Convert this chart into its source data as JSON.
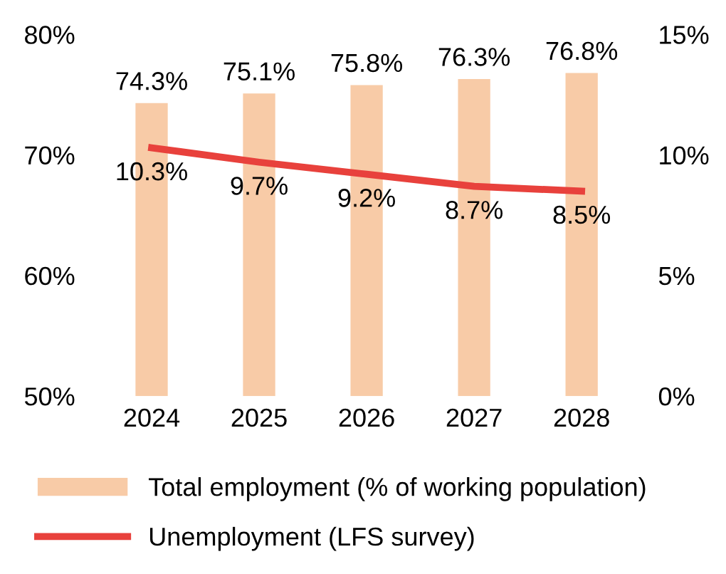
{
  "chart_data": {
    "type": "bar",
    "categories": [
      "2024",
      "2025",
      "2026",
      "2027",
      "2028"
    ],
    "series": [
      {
        "name": "Total employment (% of working population)",
        "color": "#f8cba7",
        "values": [
          74.3,
          75.1,
          75.8,
          76.3,
          76.8
        ],
        "value_labels": [
          "74.3%",
          "75.1%",
          "75.8%",
          "76.3%",
          "76.8%"
        ]
      },
      {
        "name": "Unemployment (LFS survey)",
        "type": "line",
        "axis": "y2",
        "color": "#e8413c",
        "values": [
          10.3,
          9.7,
          9.2,
          8.7,
          8.5
        ],
        "value_labels": [
          "10.3%",
          "9.7%",
          "9.2%",
          "8.7%",
          "8.5%"
        ]
      }
    ],
    "ylim": [
      50,
      80
    ],
    "yticks": [
      {
        "value": 50,
        "label": "50%"
      },
      {
        "value": 60,
        "label": "60%"
      },
      {
        "value": 70,
        "label": "70%"
      },
      {
        "value": 80,
        "label": "80%"
      }
    ],
    "y2lim": [
      0,
      15
    ],
    "y2ticks": [
      {
        "value": 0,
        "label": "0%"
      },
      {
        "value": 5,
        "label": "5%"
      },
      {
        "value": 10,
        "label": "10%"
      },
      {
        "value": 15,
        "label": "15%"
      }
    ],
    "legend": "bottom",
    "grid": false,
    "marker": "none",
    "line_style": "solid"
  }
}
